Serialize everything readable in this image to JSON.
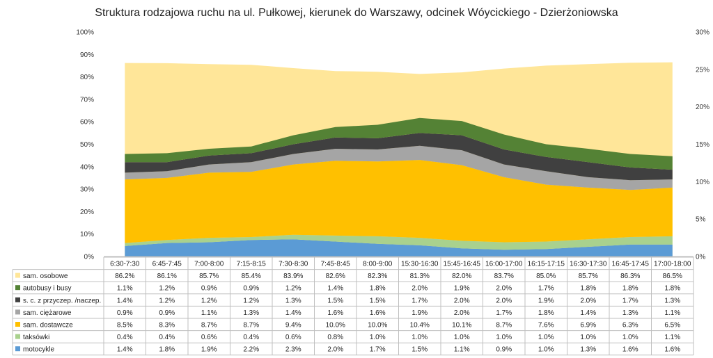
{
  "chart_data": {
    "type": "area",
    "title": "Struktura rodzajowa ruchu na ul. Pułkowej, kierunek do Warszawy, odcinek Wóycickiego - Dzierżoniowska",
    "categories": [
      "6:30-7:30",
      "6:45-7:45",
      "7:00-8:00",
      "7:15-8:15",
      "7:30-8:30",
      "7:45-8:45",
      "8:00-9:00",
      "15:30-16:30",
      "15:45-16:45",
      "16:00-17:00",
      "16:15-17:15",
      "16:30-17:30",
      "16:45-17:45",
      "17:00-18:00"
    ],
    "left_axis": {
      "range": [
        0,
        100
      ],
      "ticks": [
        "0%",
        "10%",
        "20%",
        "30%",
        "40%",
        "50%",
        "60%",
        "70%",
        "80%",
        "90%",
        "100%"
      ]
    },
    "right_axis": {
      "range": [
        0,
        30
      ],
      "ticks": [
        "0%",
        "5%",
        "10%",
        "15%",
        "20%",
        "25%",
        "30%"
      ]
    },
    "grid": false,
    "legend": "table-left",
    "series": [
      {
        "name": "motocykle",
        "color": "#5b9bd5",
        "axis": "right",
        "values": [
          1.4,
          1.8,
          1.9,
          2.2,
          2.3,
          2.0,
          1.7,
          1.5,
          1.1,
          0.9,
          1.0,
          1.3,
          1.6,
          1.6
        ],
        "labels": [
          "1.4%",
          "1.8%",
          "1.9%",
          "2.2%",
          "2.3%",
          "2.0%",
          "1.7%",
          "1.5%",
          "1.1%",
          "0.9%",
          "1.0%",
          "1.3%",
          "1.6%",
          "1.6%"
        ]
      },
      {
        "name": "taksówki",
        "color": "#a9d18e",
        "axis": "right",
        "values": [
          0.4,
          0.4,
          0.6,
          0.4,
          0.6,
          0.8,
          1.0,
          1.0,
          1.0,
          1.0,
          1.0,
          1.0,
          1.0,
          1.1
        ],
        "labels": [
          "0.4%",
          "0.4%",
          "0.6%",
          "0.4%",
          "0.6%",
          "0.8%",
          "1.0%",
          "1.0%",
          "1.0%",
          "1.0%",
          "1.0%",
          "1.0%",
          "1.0%",
          "1.1%"
        ]
      },
      {
        "name": "sam. dostawcze",
        "color": "#ffc000",
        "axis": "right",
        "values": [
          8.5,
          8.3,
          8.7,
          8.7,
          9.4,
          10.0,
          10.0,
          10.4,
          10.1,
          8.7,
          7.6,
          6.9,
          6.3,
          6.5
        ],
        "labels": [
          "8.5%",
          "8.3%",
          "8.7%",
          "8.7%",
          "9.4%",
          "10.0%",
          "10.0%",
          "10.4%",
          "10.1%",
          "8.7%",
          "7.6%",
          "6.9%",
          "6.3%",
          "6.5%"
        ]
      },
      {
        "name": "sam. ciężarowe",
        "color": "#a5a5a5",
        "axis": "right",
        "values": [
          0.9,
          0.9,
          1.1,
          1.3,
          1.4,
          1.6,
          1.6,
          1.9,
          2.0,
          1.7,
          1.8,
          1.4,
          1.3,
          1.1
        ],
        "labels": [
          "0.9%",
          "0.9%",
          "1.1%",
          "1.3%",
          "1.4%",
          "1.6%",
          "1.6%",
          "1.9%",
          "2.0%",
          "1.7%",
          "1.8%",
          "1.4%",
          "1.3%",
          "1.1%"
        ]
      },
      {
        "name": "s. c. z przyczep. /naczep.",
        "color": "#404040",
        "axis": "right",
        "values": [
          1.4,
          1.2,
          1.2,
          1.2,
          1.3,
          1.5,
          1.5,
          1.7,
          2.0,
          2.0,
          1.9,
          2.0,
          1.7,
          1.3
        ],
        "labels": [
          "1.4%",
          "1.2%",
          "1.2%",
          "1.2%",
          "1.3%",
          "1.5%",
          "1.5%",
          "1.7%",
          "2.0%",
          "2.0%",
          "1.9%",
          "2.0%",
          "1.7%",
          "1.3%"
        ]
      },
      {
        "name": "autobusy i busy",
        "color": "#548235",
        "axis": "right",
        "values": [
          1.1,
          1.2,
          0.9,
          0.9,
          1.2,
          1.4,
          1.8,
          2.0,
          1.9,
          2.0,
          1.7,
          1.8,
          1.8,
          1.8
        ],
        "labels": [
          "1.1%",
          "1.2%",
          "0.9%",
          "0.9%",
          "1.2%",
          "1.4%",
          "1.8%",
          "2.0%",
          "1.9%",
          "2.0%",
          "1.7%",
          "1.8%",
          "1.8%",
          "1.8%"
        ]
      },
      {
        "name": "sam. osobowe",
        "color": "#ffe699",
        "axis": "left",
        "values": [
          86.2,
          86.1,
          85.7,
          85.4,
          83.9,
          82.6,
          82.3,
          81.3,
          82.0,
          83.7,
          85.0,
          85.7,
          86.3,
          86.5
        ],
        "labels": [
          "86.2%",
          "86.1%",
          "85.7%",
          "85.4%",
          "83.9%",
          "82.6%",
          "82.3%",
          "81.3%",
          "82.0%",
          "83.7%",
          "85.0%",
          "85.7%",
          "86.3%",
          "86.5%"
        ]
      }
    ],
    "table_row_order": [
      "sam. osobowe",
      "autobusy i busy",
      "s. c. z przyczep. /naczep.",
      "sam. ciężarowe",
      "sam. dostawcze",
      "taksówki",
      "motocykle"
    ]
  }
}
